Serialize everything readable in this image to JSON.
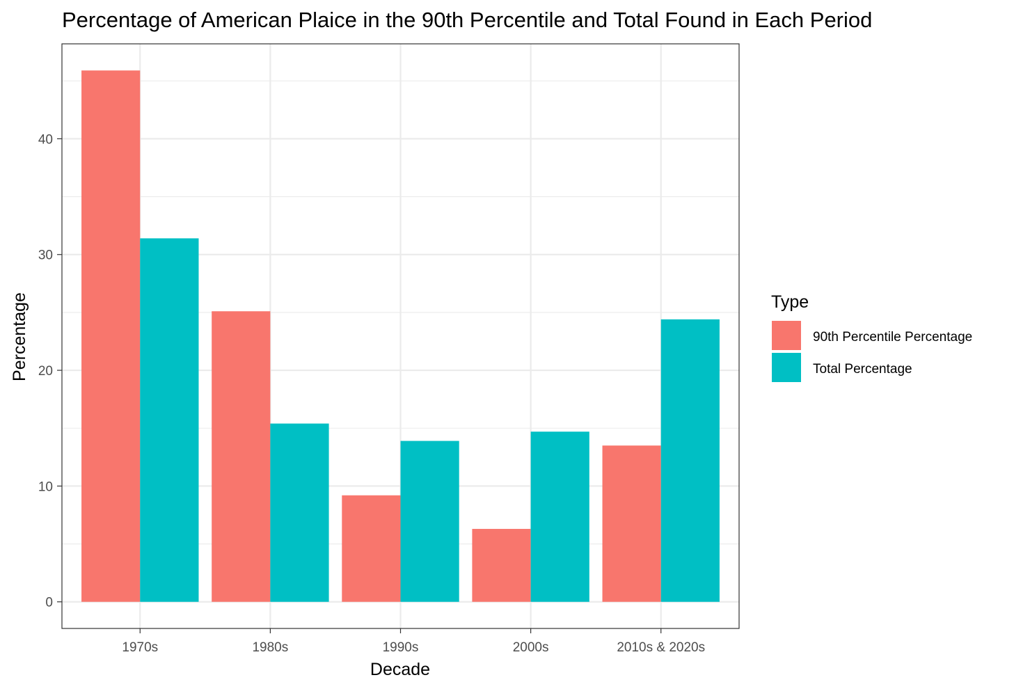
{
  "chart_data": {
    "type": "bar",
    "title": "Percentage of American Plaice in the 90th Percentile and Total Found in Each Period",
    "xlabel": "Decade",
    "ylabel": "Percentage",
    "categories": [
      "1970s",
      "1980s",
      "1990s",
      "2000s",
      "2010s & 2020s"
    ],
    "series": [
      {
        "name": "90th Percentile Percentage",
        "color": "#F8766D",
        "values": [
          45.9,
          25.1,
          9.2,
          6.3,
          13.5
        ]
      },
      {
        "name": "Total Percentage",
        "color": "#00BFC4",
        "values": [
          31.4,
          15.4,
          13.9,
          14.7,
          24.4
        ]
      }
    ],
    "ylim": [
      -2.3,
      48.2
    ],
    "yticks": [
      0,
      10,
      20,
      30,
      40
    ],
    "grid": true,
    "legend": {
      "title": "Type",
      "placement": "right"
    }
  }
}
